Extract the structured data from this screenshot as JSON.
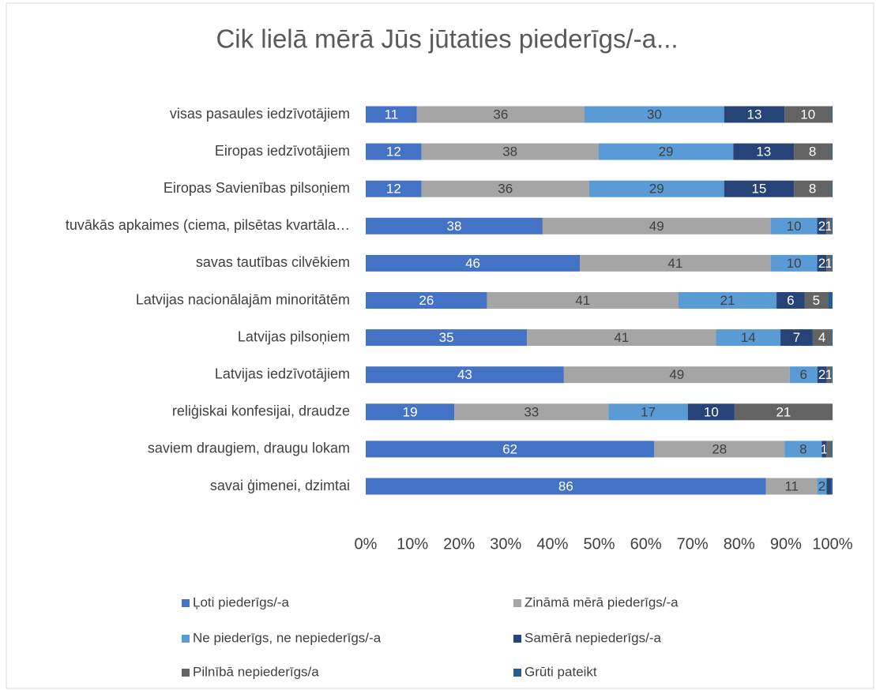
{
  "chart_data": {
    "type": "stacked_barh_100",
    "title": "Cik lielā mērā Jūs jūtaties piederīgs/-a...",
    "categories": [
      "visas pasaules iedzīvotājiem",
      "Eiropas iedzīvotājiem",
      "Eiropas Savienības pilsoņiem",
      "tuvākās apkaimes (ciema, pilsētas kvartāla…",
      "savas tautības cilvēkiem",
      "Latvijas nacionālajām minoritātēm",
      "Latvijas pilsoņiem",
      "Latvijas iedzīvotājiem",
      "reliģiskai konfesijai, draudze",
      "saviem draugiem, draugu lokam",
      "savai ģimenei, dzimtai"
    ],
    "series": [
      {
        "name": "Ļoti piederīgs/-a",
        "color": "#4472c4",
        "values": [
          11,
          12,
          12,
          38,
          46,
          26,
          35,
          43,
          19,
          62,
          86
        ],
        "value_labels": [
          "11",
          "12",
          "12",
          "38",
          "46",
          "26",
          "35",
          "43",
          "19",
          "62",
          "86"
        ]
      },
      {
        "name": "Zināmā mērā piederīgs/-a",
        "color": "#a5a5a5",
        "values": [
          36,
          38,
          36,
          49,
          41,
          41,
          41,
          49,
          33,
          28,
          11
        ],
        "value_labels": [
          "36",
          "38",
          "36",
          "49",
          "41",
          "41",
          "41",
          "49",
          "33",
          "28",
          "11"
        ]
      },
      {
        "name": "Ne piederīgs, ne nepiederīgs/-a",
        "color": "#5b9bd5",
        "values": [
          30,
          29,
          29,
          10,
          10,
          21,
          14,
          6,
          17,
          8,
          2
        ],
        "value_labels": [
          "30",
          "29",
          "29",
          "10",
          "10",
          "21",
          "14",
          "6",
          "17",
          "8",
          "2"
        ]
      },
      {
        "name": "Samērā nepiederīgs/-a",
        "color": "#264478",
        "values": [
          13,
          13,
          15,
          2,
          2,
          6,
          7,
          2,
          10,
          1,
          1
        ],
        "value_labels": [
          "13",
          "13",
          "15",
          "2",
          "2",
          "6",
          "7",
          "2",
          "10",
          "1",
          null
        ]
      },
      {
        "name": "Pilnībā nepiederīgs/a",
        "color": "#636363",
        "values": [
          10,
          8,
          8,
          1,
          1,
          5,
          4,
          1,
          21,
          1,
          0
        ],
        "value_labels": [
          "10",
          "8",
          "8",
          "1",
          "1",
          "5",
          "4",
          "1",
          "21",
          null,
          null
        ]
      },
      {
        "name": "Grūti pateikt",
        "color": "#255e91",
        "values": [
          0.3,
          0.3,
          0.3,
          0.3,
          0.3,
          1,
          0.3,
          0.3,
          0,
          0.3,
          0.3
        ],
        "value_labels": [
          null,
          null,
          null,
          null,
          null,
          null,
          null,
          null,
          null,
          null,
          null
        ]
      }
    ],
    "xlim": [
      0,
      100
    ],
    "xticks": [
      {
        "value": 0,
        "label": "0%"
      },
      {
        "value": 10,
        "label": "10%"
      },
      {
        "value": 20,
        "label": "20%"
      },
      {
        "value": 30,
        "label": "30%"
      },
      {
        "value": 40,
        "label": "40%"
      },
      {
        "value": 50,
        "label": "50%"
      },
      {
        "value": 60,
        "label": "60%"
      },
      {
        "value": 70,
        "label": "70%"
      },
      {
        "value": 80,
        "label": "80%"
      },
      {
        "value": 90,
        "label": "90%"
      },
      {
        "value": 100,
        "label": "100%"
      }
    ]
  }
}
